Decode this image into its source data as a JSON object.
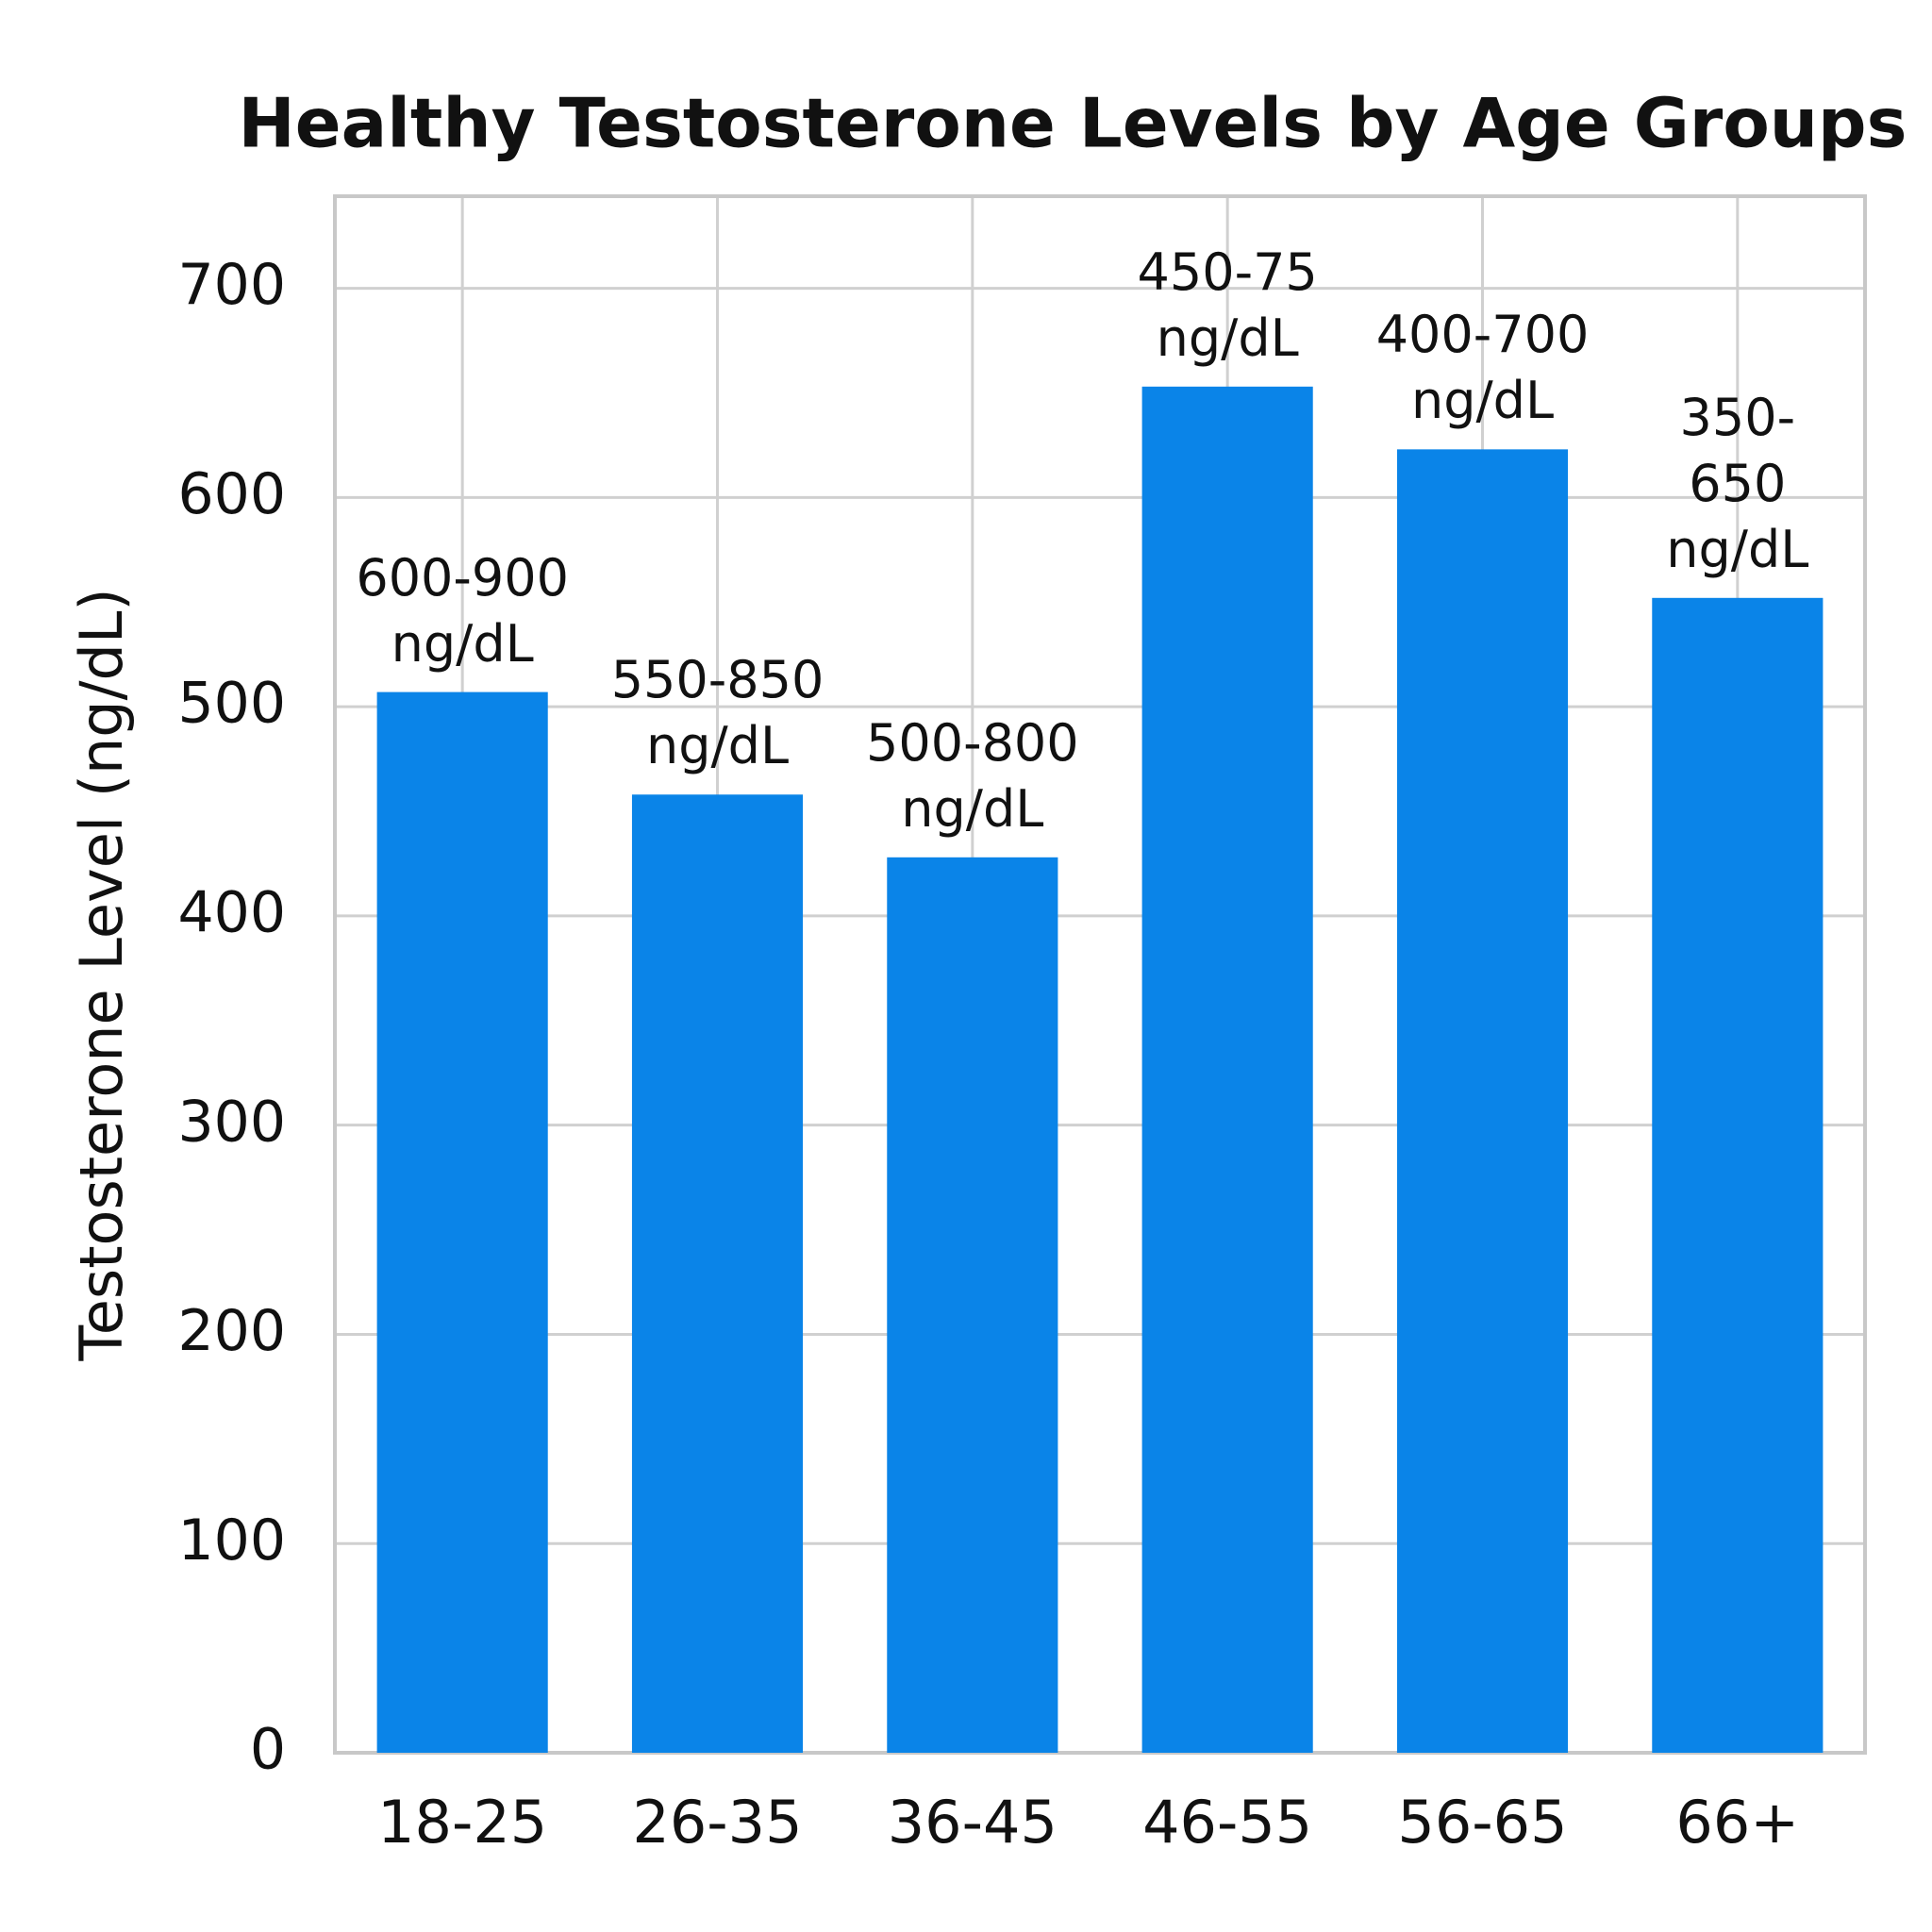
{
  "chart_data": {
    "type": "bar",
    "title": "Healthy Testosterone Levels by Age Groups",
    "y_label": "Testosterone Level (ng/dL)",
    "categories": [
      "18-25",
      "26-35",
      "36-45",
      "46-55",
      "56-65",
      "66+"
    ],
    "values": [
      507,
      458,
      428,
      653,
      623,
      552
    ],
    "annotations": [
      "600-900\nng/dL",
      "550-850\nng/dL",
      "500-800\nng/dL",
      "450-75\nng/dL",
      "400-700\nng/dL",
      "350-650\nng/dL"
    ],
    "color": "#0a84e8",
    "ylim": [
      0,
      744
    ],
    "yticks": [
      0,
      100,
      200,
      300,
      400,
      500,
      600,
      700
    ],
    "grid": true
  }
}
